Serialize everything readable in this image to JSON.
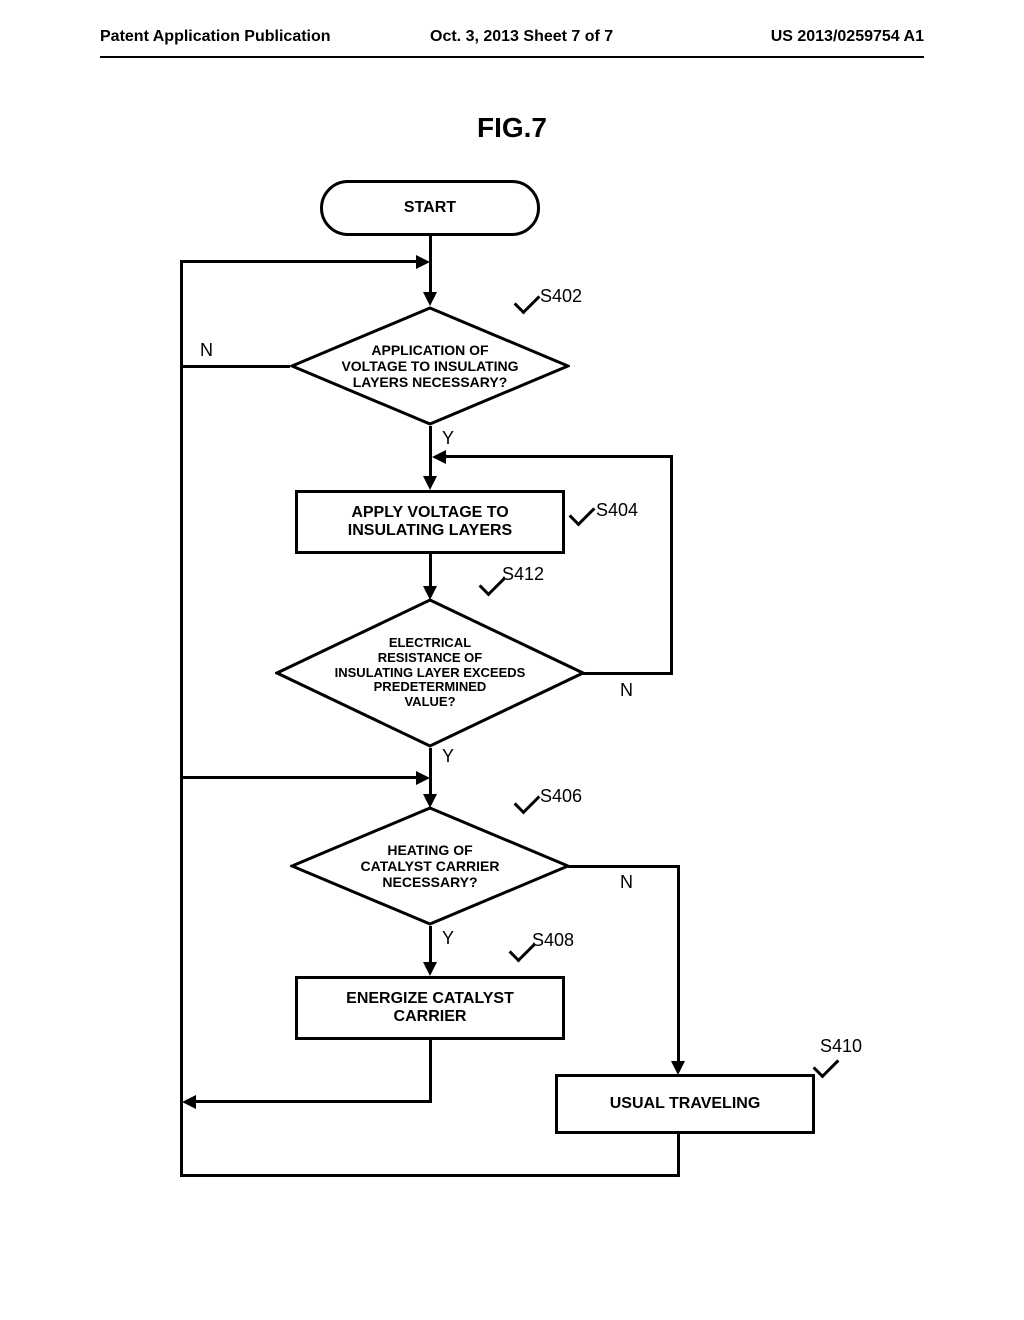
{
  "header": {
    "left": "Patent Application Publication",
    "center": "Oct. 3, 2013  Sheet 7 of 7",
    "right": "US 2013/0259754 A1"
  },
  "figure_title": "FIG.7",
  "flowchart": {
    "line_color": "#000000",
    "line_width": 3,
    "background": "#ffffff",
    "text_color": "#000000",
    "nodes": {
      "start": {
        "type": "terminator",
        "label": "START"
      },
      "s402": {
        "type": "decision",
        "label": "APPLICATION OF\nVOLTAGE TO INSULATING\nLAYERS NECESSARY?",
        "tag": "S402"
      },
      "s404": {
        "type": "process",
        "label": "APPLY VOLTAGE TO\nINSULATING LAYERS",
        "tag": "S404"
      },
      "s412": {
        "type": "decision",
        "label": "ELECTRICAL\nRESISTANCE OF\nINSULATING LAYER EXCEEDS\nPREDETERMINED\nVALUE?",
        "tag": "S412"
      },
      "s406": {
        "type": "decision",
        "label": "HEATING OF\nCATALYST CARRIER\nNECESSARY?",
        "tag": "S406"
      },
      "s408": {
        "type": "process",
        "label": "ENERGIZE CATALYST\nCARRIER",
        "tag": "S408"
      },
      "s410": {
        "type": "process",
        "label": "USUAL TRAVELING",
        "tag": "S410"
      }
    },
    "edge_labels": {
      "s402_no": "N",
      "s402_yes": "Y",
      "s412_no": "N",
      "s412_yes": "Y",
      "s406_no": "N",
      "s406_yes": "Y"
    }
  }
}
